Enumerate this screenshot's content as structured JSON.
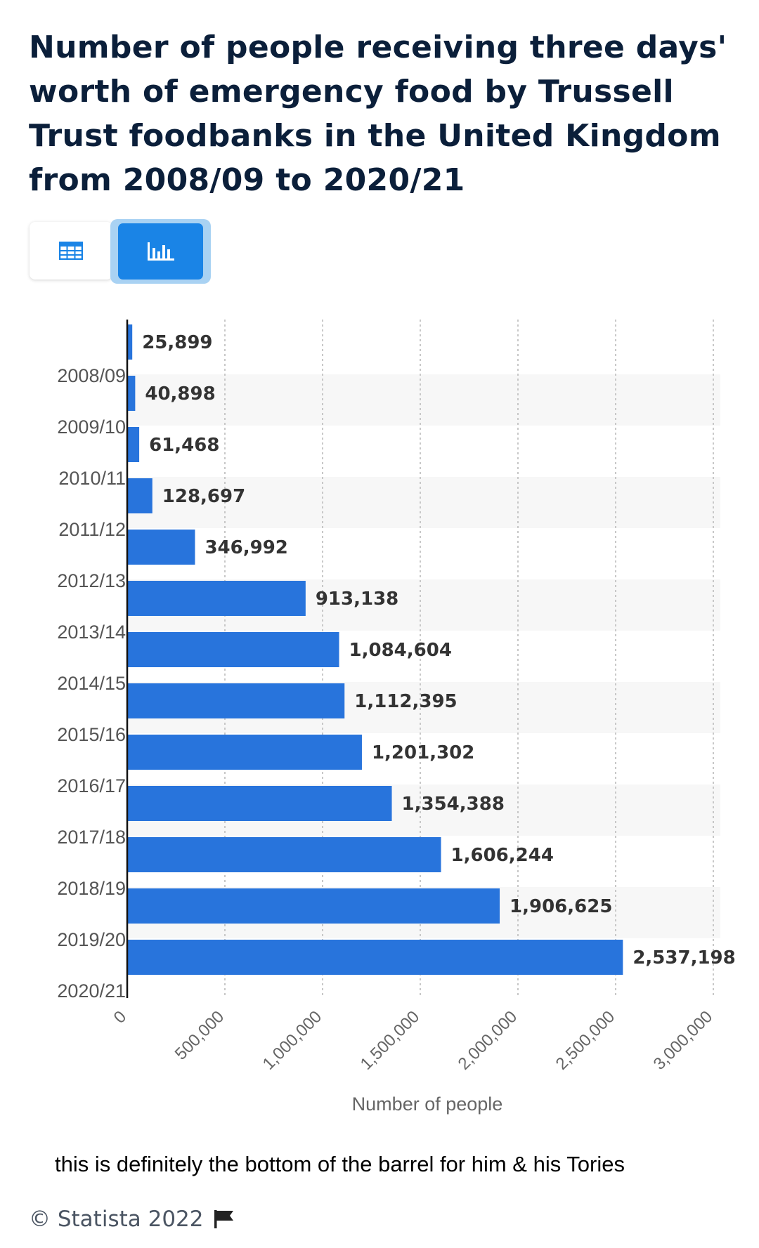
{
  "title": "Number of people receiving three days' worth of emergency food by Trussell Trust foodbanks in the United Kingdom from 2008/09 to 2020/21",
  "view_toggle": {
    "table_icon": "table-icon",
    "chart_icon": "bar-chart-icon",
    "selected": "chart"
  },
  "colors": {
    "bar": "#2874dc",
    "title": "#0b1f3a",
    "toggle_active": "#1a84e6"
  },
  "chart_data": {
    "type": "bar",
    "orientation": "horizontal",
    "categories": [
      "2008/09",
      "2009/10",
      "2010/11",
      "2011/12",
      "2012/13",
      "2013/14",
      "2014/15",
      "2015/16",
      "2016/17",
      "2017/18",
      "2018/19",
      "2019/20",
      "2020/21"
    ],
    "values": [
      25899,
      40898,
      61468,
      128697,
      346992,
      913138,
      1084604,
      1112395,
      1201302,
      1354388,
      1606244,
      1906625,
      2537198
    ],
    "value_labels": [
      "25,899",
      "40,898",
      "61,468",
      "128,697",
      "346,992",
      "913,138",
      "1,084,604",
      "1,112,395",
      "1,201,302",
      "1,354,388",
      "1,606,244",
      "1,906,625",
      "2,537,198"
    ],
    "xlabel": "Number of people",
    "xlim": [
      0,
      3000000
    ],
    "x_ticks": [
      0,
      500000,
      1000000,
      1500000,
      2000000,
      2500000,
      3000000
    ],
    "x_tick_labels": [
      "0",
      "500,000",
      "1,000,000",
      "1,500,000",
      "2,000,000",
      "2,500,000",
      "3,000,000"
    ],
    "grid": true
  },
  "caption": "this is definitely the bottom of the barrel for him & his Tories",
  "footer": {
    "copyright": "© Statista 2022",
    "flag_icon": "flag-icon"
  }
}
